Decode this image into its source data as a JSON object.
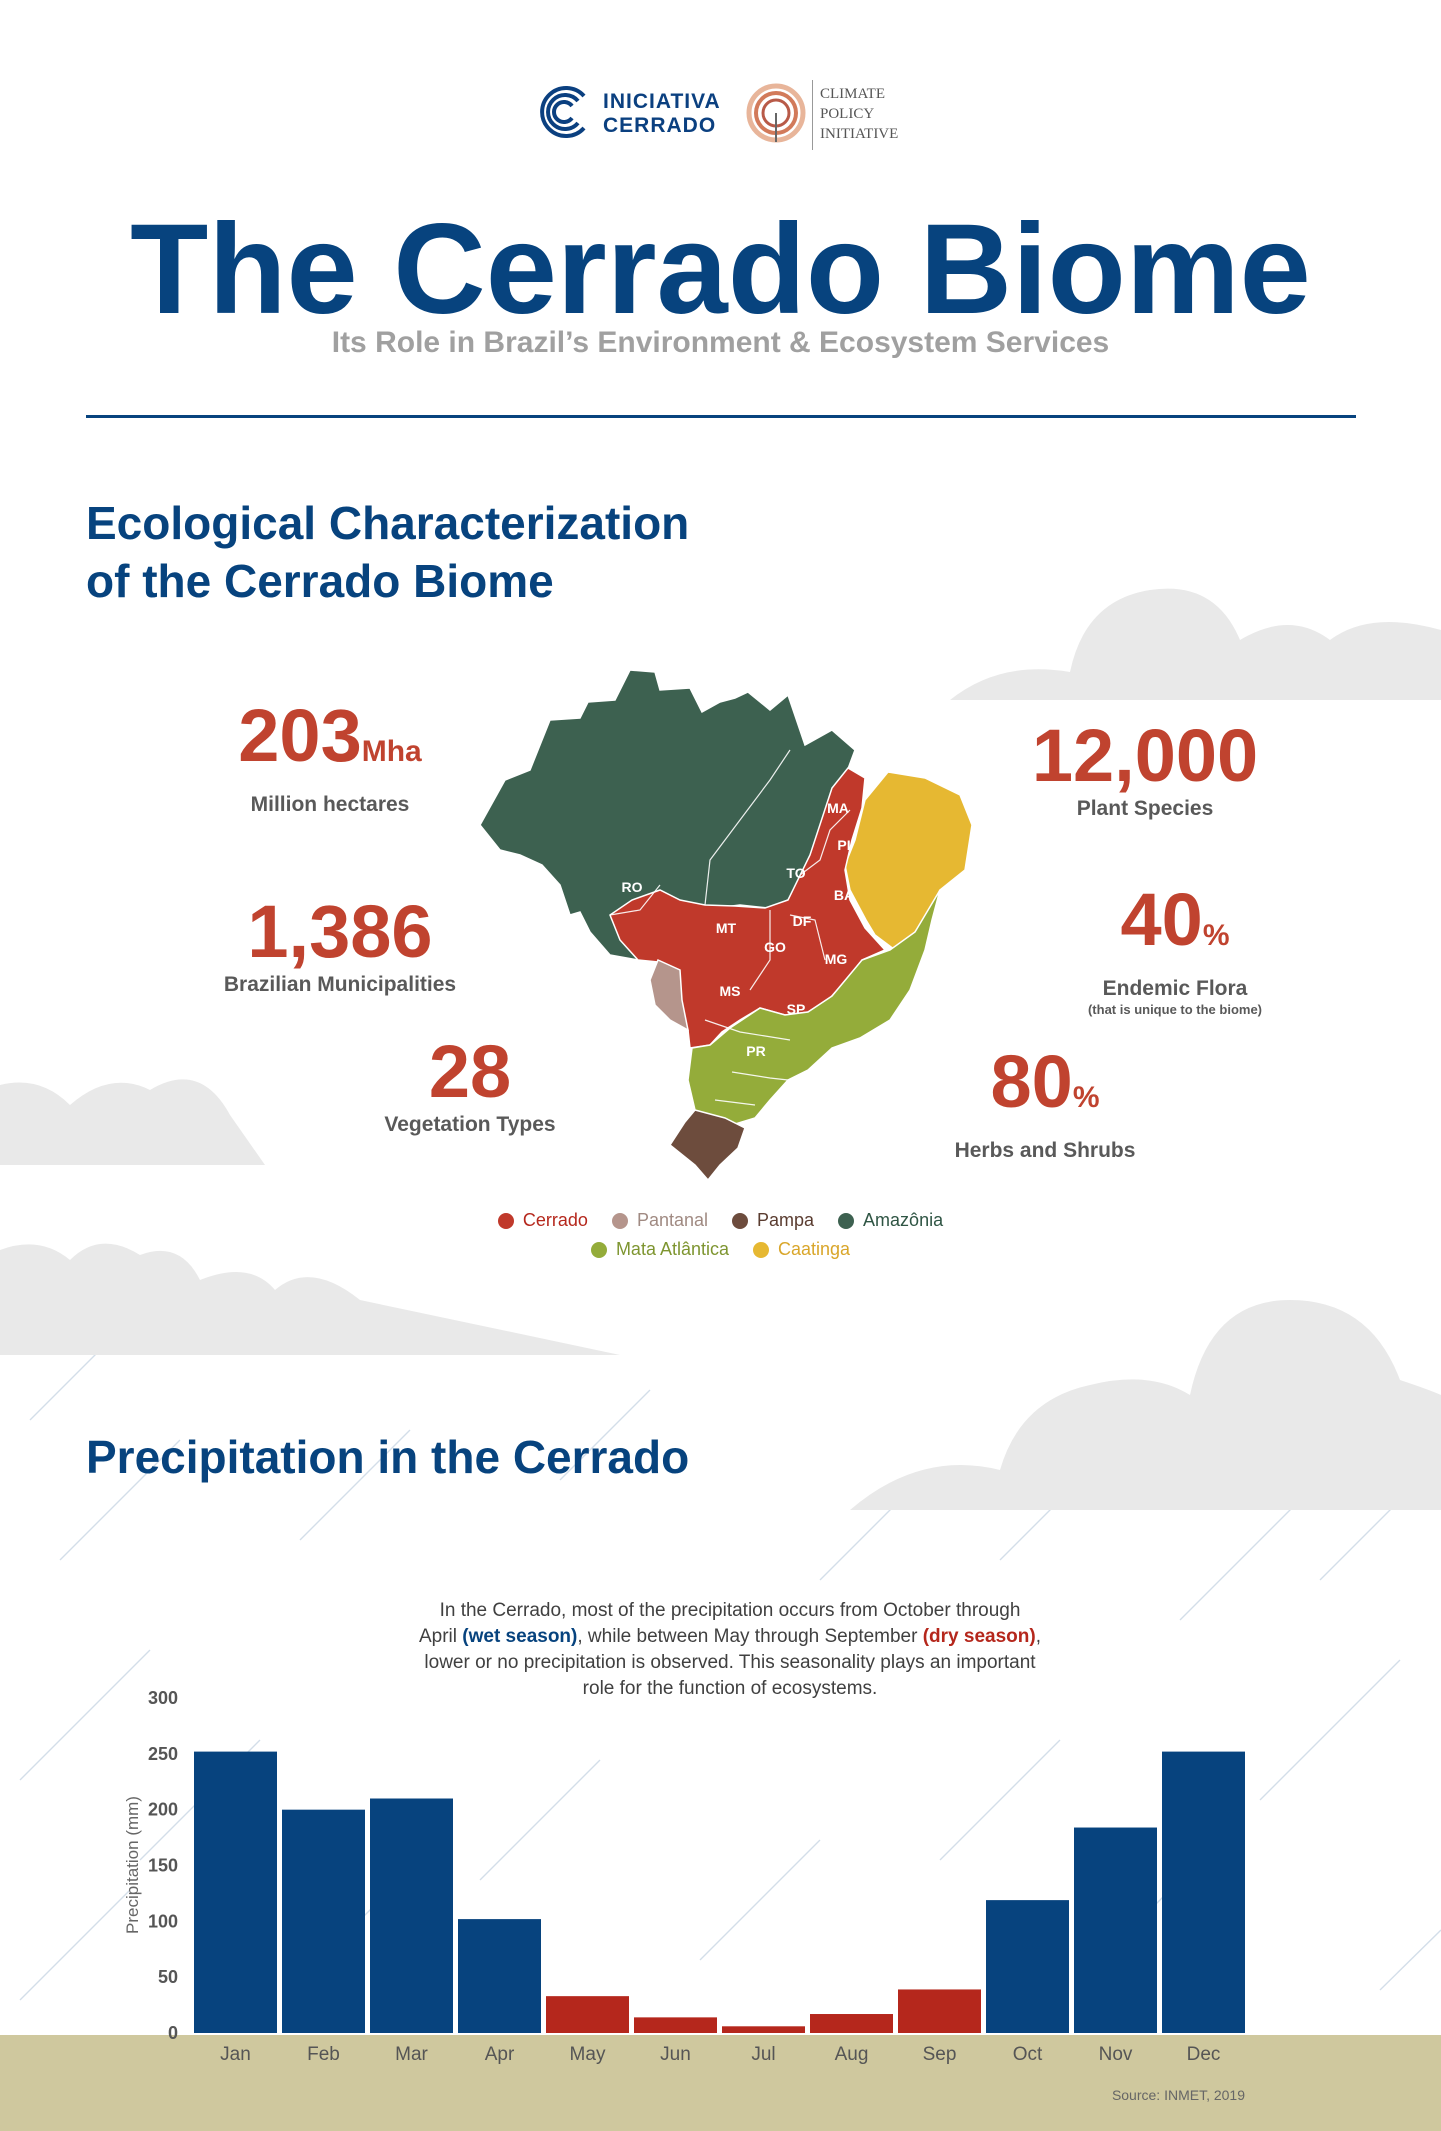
{
  "logos": {
    "iniciativa_line1": "INICIATIVA",
    "iniciativa_line2": "CERRADO",
    "cpi_line1": "CLIMATE",
    "cpi_line2": "POLICY",
    "cpi_line3": "INITIATIVE"
  },
  "header": {
    "title": "The Cerrado Biome",
    "subtitle": "Its Role in Brazil’s Environment & Ecosystem Services"
  },
  "ecology": {
    "heading_line1": "Ecological Characterization",
    "heading_line2": "of the Cerrado Biome",
    "stats": {
      "area": {
        "value": "203",
        "unit": "Mha",
        "label": "Million hectares"
      },
      "municipalities": {
        "value": "1,386",
        "label": "Brazilian Municipalities"
      },
      "vegetation": {
        "value": "28",
        "label": "Vegetation Types"
      },
      "plants": {
        "value": "12,000",
        "label": "Plant Species"
      },
      "endemic": {
        "value": "40",
        "unit": "%",
        "label": "Endemic Flora",
        "note": "(that is unique to the biome)"
      },
      "herbs": {
        "value": "80",
        "unit": "%",
        "label": "Herbs and Shrubs"
      }
    },
    "map_labels": {
      "MA": "MA",
      "PI": "PI",
      "TO": "TO",
      "BA": "BA",
      "RO": "RO",
      "MT": "MT",
      "DF": "DF",
      "GO": "GO",
      "MG": "MG",
      "MS": "MS",
      "SP": "SP",
      "PR": "PR"
    },
    "legend": [
      {
        "label": "Cerrado",
        "color": "#c0392b"
      },
      {
        "label": "Pantanal",
        "color": "#b5958c"
      },
      {
        "label": "Pampa",
        "color": "#6d4c3d"
      },
      {
        "label": "Amazônia",
        "color": "#3d6150"
      },
      {
        "label": "Mata Atlântica",
        "color": "#94ac3a"
      },
      {
        "label": "Caatinga",
        "color": "#e6b832"
      }
    ]
  },
  "precip": {
    "heading": "Precipitation in the Cerrado",
    "intro": {
      "p1": "In the Cerrado, most of the precipitation occurs from October through",
      "p2": "April ",
      "wet": "(wet season)",
      "p3": ", while between May through September ",
      "dry": "(dry season)",
      "p4": ",",
      "p5": "lower or no precipitation is observed. This seasonality plays an important",
      "p6": "role for the function of ecosystems."
    },
    "source": "Source: INMET, 2019"
  },
  "colors": {
    "wet": "#07437e",
    "dry": "#b5271c",
    "accent": "#c0432f",
    "ground": "#cfc89e"
  },
  "chart_data": {
    "type": "bar",
    "title": "",
    "xlabel": "",
    "ylabel": "Precipitation (mm)",
    "ylim": [
      0,
      300
    ],
    "yticks": [
      0,
      50,
      100,
      150,
      200,
      250,
      300
    ],
    "grid": false,
    "categories": [
      "Jan",
      "Feb",
      "Mar",
      "Apr",
      "May",
      "Jun",
      "Jul",
      "Aug",
      "Sep",
      "Oct",
      "Nov",
      "Dec"
    ],
    "values": [
      252,
      200,
      210,
      102,
      33,
      14,
      6,
      17,
      39,
      119,
      184,
      252
    ],
    "season": [
      "wet",
      "wet",
      "wet",
      "wet",
      "dry",
      "dry",
      "dry",
      "dry",
      "dry",
      "wet",
      "wet",
      "wet"
    ]
  }
}
